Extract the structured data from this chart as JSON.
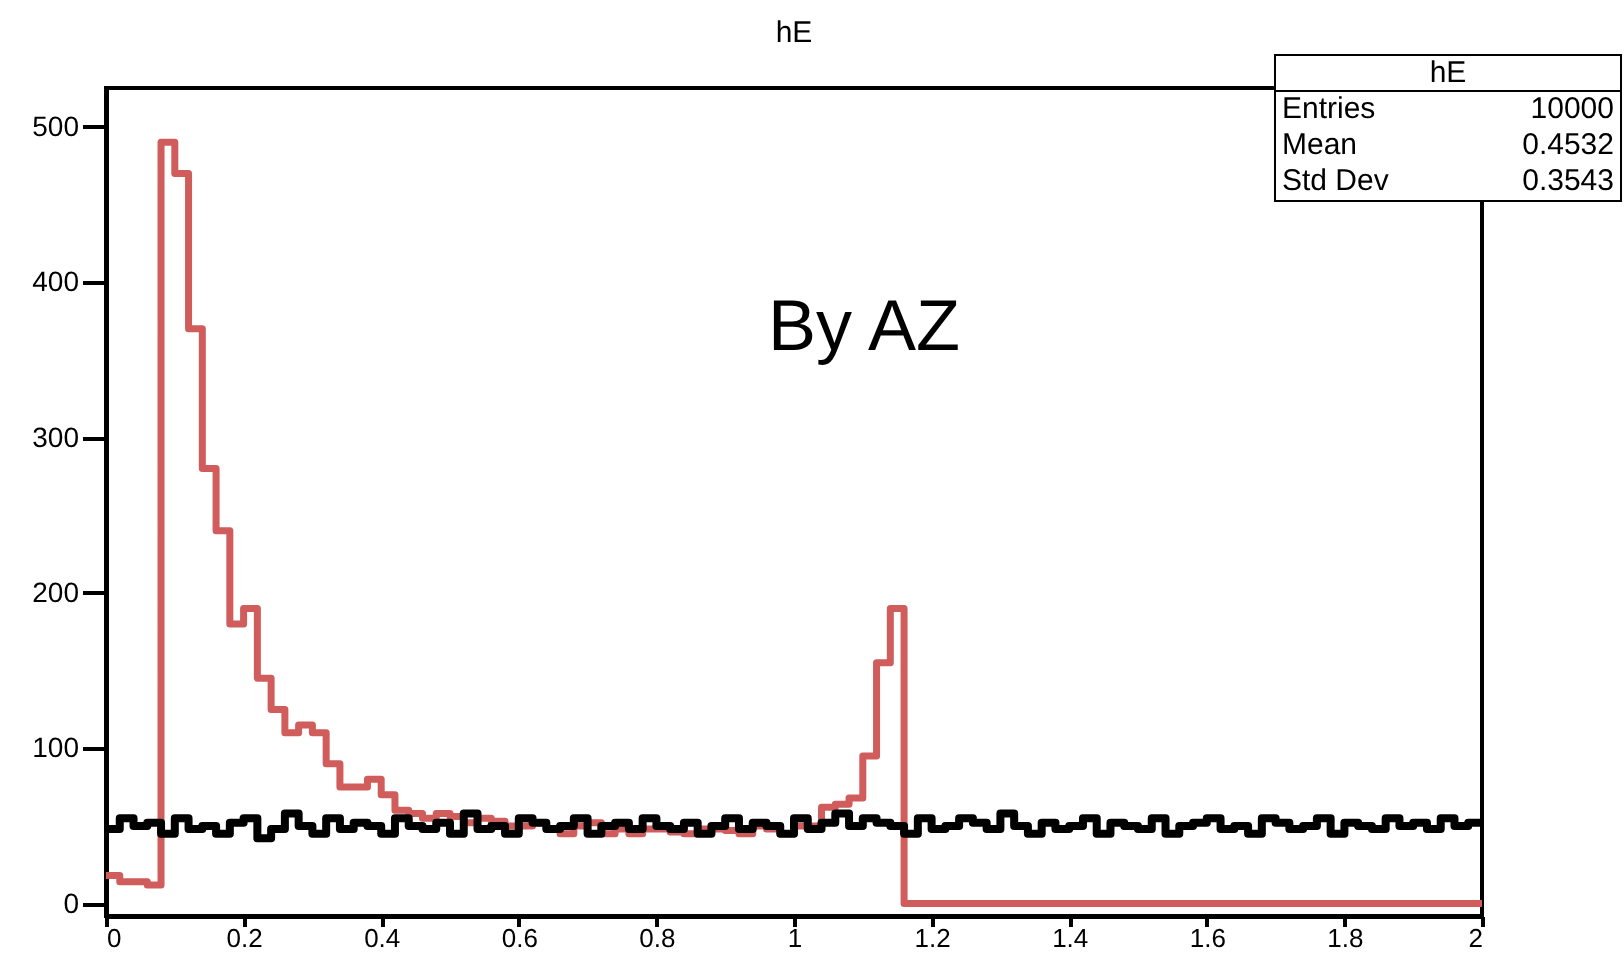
{
  "chart_data": {
    "type": "histogram",
    "title": "hE",
    "bins": [
      0,
      0.02,
      0.04,
      0.06,
      0.08,
      0.1,
      0.12,
      0.14,
      0.16,
      0.18,
      0.2,
      0.22,
      0.24,
      0.26,
      0.28,
      0.3,
      0.32,
      0.34,
      0.36,
      0.38,
      0.4,
      0.42,
      0.44,
      0.46,
      0.48,
      0.5,
      0.52,
      0.54,
      0.56,
      0.58,
      0.6,
      0.62,
      0.64,
      0.66,
      0.68,
      0.7,
      0.72,
      0.74,
      0.76,
      0.78,
      0.8,
      0.82,
      0.84,
      0.86,
      0.88,
      0.9,
      0.92,
      0.94,
      0.96,
      0.98,
      1,
      1.02,
      1.04,
      1.06,
      1.08,
      1.1,
      1.12,
      1.14,
      1.16,
      1.18,
      1.2,
      1.22,
      1.24,
      1.26,
      1.28,
      1.3,
      1.32,
      1.34,
      1.36,
      1.38,
      1.4,
      1.42,
      1.44,
      1.46,
      1.48,
      1.5,
      1.52,
      1.54,
      1.56,
      1.58,
      1.6,
      1.62,
      1.64,
      1.66,
      1.68,
      1.7,
      1.72,
      1.74,
      1.76,
      1.78,
      1.8,
      1.82,
      1.84,
      1.86,
      1.88,
      1.9,
      1.92,
      1.94,
      1.96,
      1.98,
      2
    ],
    "series": [
      {
        "color": "#d15c5c",
        "values": [
          18,
          14,
          14,
          12,
          490,
          470,
          370,
          280,
          240,
          180,
          190,
          145,
          125,
          110,
          115,
          110,
          90,
          75,
          75,
          80,
          70,
          60,
          58,
          55,
          58,
          56,
          52,
          55,
          53,
          50,
          50,
          52,
          48,
          45,
          50,
          52,
          45,
          48,
          45,
          48,
          48,
          46,
          45,
          48,
          48,
          47,
          45,
          50,
          48,
          45,
          50,
          50,
          62,
          64,
          68,
          95,
          155,
          190,
          0,
          0,
          0,
          0,
          0,
          0,
          0,
          0,
          0,
          0,
          0,
          0,
          0,
          0,
          0,
          0,
          0,
          0,
          0,
          0,
          0,
          0,
          0,
          0,
          0,
          0,
          0,
          0,
          0,
          0,
          0,
          0,
          0,
          0,
          0,
          0,
          0,
          0,
          0,
          0,
          0,
          0
        ]
      },
      {
        "color": "#000000",
        "values": [
          48,
          55,
          50,
          52,
          45,
          55,
          48,
          50,
          45,
          52,
          55,
          42,
          48,
          58,
          50,
          45,
          55,
          48,
          52,
          50,
          45,
          55,
          50,
          48,
          52,
          45,
          58,
          48,
          50,
          45,
          55,
          52,
          48,
          50,
          55,
          45,
          50,
          52,
          48,
          55,
          50,
          48,
          52,
          45,
          50,
          55,
          48,
          52,
          50,
          45,
          55,
          48,
          52,
          58,
          50,
          55,
          52,
          50,
          45,
          55,
          48,
          50,
          55,
          52,
          48,
          58,
          50,
          45,
          52,
          48,
          50,
          55,
          45,
          52,
          50,
          48,
          55,
          45,
          50,
          52,
          55,
          48,
          50,
          45,
          55,
          52,
          48,
          50,
          55,
          45,
          52,
          50,
          48,
          55,
          50,
          52,
          48,
          55,
          50,
          52
        ]
      }
    ],
    "xlim": [
      0,
      2
    ],
    "xticks": [
      0,
      0.2,
      0.4,
      0.6,
      0.8,
      1,
      1.2,
      1.4,
      1.6,
      1.8,
      2
    ],
    "ylim": [
      -8,
      525
    ],
    "yticks": [
      0,
      100,
      200,
      300,
      400,
      500
    ],
    "annotations": [
      "hE",
      "Entries",
      "10000",
      "Mean",
      "0.4532",
      "Std Dev",
      "0.3543",
      "By AZ"
    ]
  }
}
